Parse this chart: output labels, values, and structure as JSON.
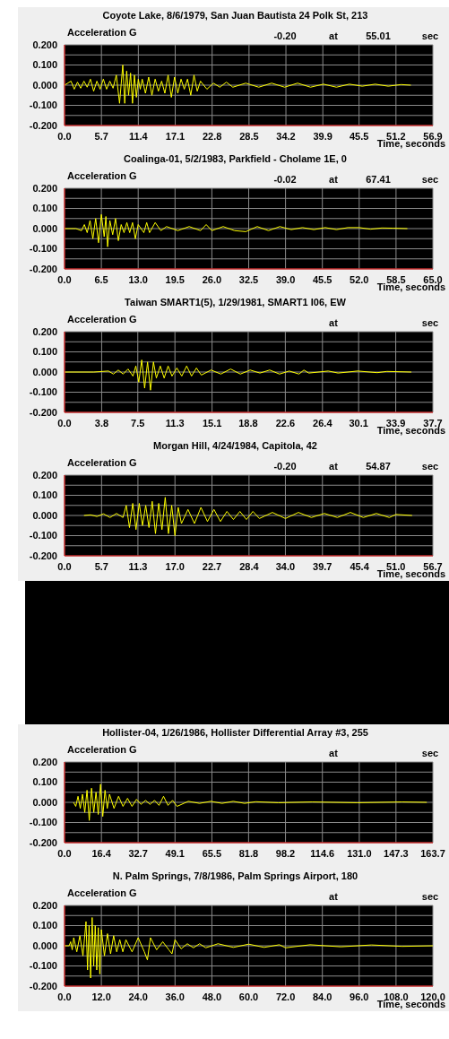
{
  "chart_data": [
    {
      "type": "line",
      "title": "Coyote Lake, 8/6/1979, San Juan Bautista 24 Polk St, 213",
      "ylabel": "Acceleration G",
      "xlabel": "Time, seconds",
      "annotations": [
        "-0.20",
        "at",
        "55.01",
        "sec"
      ],
      "grid": true,
      "x": [
        0,
        1,
        1.5,
        2,
        2.5,
        3,
        3.5,
        4,
        4.5,
        5,
        5.5,
        6,
        6.5,
        7,
        7.5,
        8,
        8.5,
        9,
        9.3,
        9.6,
        9.9,
        10.2,
        10.5,
        10.8,
        11.1,
        11.4,
        11.7,
        12,
        12.5,
        13,
        13.5,
        14,
        14.5,
        15,
        15.5,
        16,
        16.5,
        17,
        17.5,
        18,
        18.5,
        19,
        19.5,
        20,
        20.5,
        21,
        22,
        23,
        24,
        25,
        26,
        28,
        30,
        32,
        34,
        36,
        38,
        40,
        42,
        44,
        46,
        48,
        50,
        52,
        53.5
      ],
      "series": [
        {
          "color": "#ffff00",
          "values": [
            0,
            0.02,
            -0.02,
            0.015,
            -0.015,
            0.02,
            -0.01,
            0.03,
            -0.03,
            0.02,
            -0.02,
            0.03,
            -0.02,
            0.02,
            -0.015,
            0.05,
            -0.09,
            0.1,
            -0.09,
            0.07,
            -0.05,
            0.06,
            -0.09,
            0.05,
            -0.06,
            0.03,
            -0.02,
            0.03,
            -0.04,
            0.04,
            -0.05,
            0.03,
            -0.03,
            0.02,
            -0.04,
            0.05,
            -0.06,
            0.04,
            -0.04,
            0.03,
            -0.02,
            0.03,
            -0.05,
            0.05,
            -0.03,
            0.02,
            -0.02,
            0.01,
            -0.01,
            0.015,
            -0.01,
            0.01,
            -0.01,
            0.01,
            -0.01,
            0.01,
            -0.01,
            0.005,
            -0.01,
            0.005,
            -0.005,
            0.005,
            -0.005,
            0.003,
            0
          ]
        }
      ],
      "xlim": [
        0,
        56.9
      ],
      "xticks": [
        {
          "value": 0,
          "label": "0.0"
        },
        {
          "value": 5.7,
          "label": "5.7"
        },
        {
          "value": 11.4,
          "label": "11.4"
        },
        {
          "value": 17.1,
          "label": "17.1"
        },
        {
          "value": 22.8,
          "label": "22.8"
        },
        {
          "value": 28.5,
          "label": "28.5"
        },
        {
          "value": 34.2,
          "label": "34.2"
        },
        {
          "value": 39.9,
          "label": "39.9"
        },
        {
          "value": 45.5,
          "label": "45.5"
        },
        {
          "value": 51.2,
          "label": "51.2"
        },
        {
          "value": 56.9,
          "label": "56.9"
        }
      ],
      "ylim": [
        -0.2,
        0.2
      ],
      "yticks": [
        {
          "value": -0.2,
          "label": "-0.200"
        },
        {
          "value": -0.15,
          "label": null
        },
        {
          "value": -0.1,
          "label": "-0.100"
        },
        {
          "value": -0.05,
          "label": null
        },
        {
          "value": 0,
          "label": "0.000"
        },
        {
          "value": 0.05,
          "label": null
        },
        {
          "value": 0.1,
          "label": "0.100"
        },
        {
          "value": 0.15,
          "label": null
        },
        {
          "value": 0.2,
          "label": "0.200"
        }
      ]
    },
    {
      "type": "line",
      "title": "Coalinga-01, 5/2/1983, Parkfield - Cholame 1E, 0",
      "ylabel": "Acceleration G",
      "xlabel": "Time, seconds",
      "annotations": [
        "-0.02",
        "at",
        "67.41",
        "sec"
      ],
      "grid": true,
      "x": [
        0,
        2,
        3,
        3.5,
        4,
        4.5,
        5,
        5.5,
        6,
        6.5,
        7,
        7.3,
        7.6,
        8,
        8.5,
        9,
        9.5,
        10,
        10.5,
        11,
        11.5,
        12,
        12.5,
        13,
        14,
        14.5,
        15,
        16,
        17,
        18,
        20,
        22,
        24,
        25,
        26,
        28,
        30,
        32,
        34,
        36,
        38,
        40,
        42,
        44,
        46,
        48,
        50,
        52,
        54,
        56,
        58,
        60.5
      ],
      "series": [
        {
          "color": "#ffff00",
          "values": [
            0,
            0,
            -0.01,
            0.02,
            -0.02,
            0.04,
            -0.05,
            0.05,
            -0.07,
            0.07,
            -0.04,
            0.06,
            -0.09,
            0.04,
            -0.03,
            0.05,
            -0.06,
            0.02,
            -0.02,
            0.03,
            -0.02,
            0.03,
            -0.05,
            0.02,
            -0.02,
            0.03,
            -0.02,
            0.03,
            -0.01,
            0.01,
            -0.01,
            0.01,
            -0.01,
            0.02,
            -0.01,
            0.01,
            -0.01,
            -0.015,
            0.01,
            -0.01,
            0.01,
            -0.005,
            0.005,
            -0.005,
            0.005,
            -0.005,
            0.005,
            0.005,
            -0.003,
            0.003,
            0.002,
            0
          ]
        }
      ],
      "xlim": [
        0,
        65
      ],
      "xticks": [
        {
          "value": 0,
          "label": "0.0"
        },
        {
          "value": 6.5,
          "label": "6.5"
        },
        {
          "value": 13,
          "label": "13.0"
        },
        {
          "value": 19.5,
          "label": "19.5"
        },
        {
          "value": 26,
          "label": "26.0"
        },
        {
          "value": 32.5,
          "label": "32.5"
        },
        {
          "value": 39,
          "label": "39.0"
        },
        {
          "value": 45.5,
          "label": "45.5"
        },
        {
          "value": 52,
          "label": "52.0"
        },
        {
          "value": 58.5,
          "label": "58.5"
        },
        {
          "value": 65,
          "label": "65.0"
        }
      ],
      "ylim": [
        -0.2,
        0.2
      ],
      "yticks": [
        {
          "value": -0.2,
          "label": "-0.200"
        },
        {
          "value": -0.15,
          "label": null
        },
        {
          "value": -0.1,
          "label": "-0.100"
        },
        {
          "value": -0.05,
          "label": null
        },
        {
          "value": 0,
          "label": "0.000"
        },
        {
          "value": 0.05,
          "label": null
        },
        {
          "value": 0.1,
          "label": "0.100"
        },
        {
          "value": 0.15,
          "label": null
        },
        {
          "value": 0.2,
          "label": "0.200"
        }
      ]
    },
    {
      "type": "line",
      "title": "Taiwan SMART1(5), 1/29/1981, SMART1 I06, EW",
      "ylabel": "Acceleration G",
      "xlabel": "Time, seconds",
      "annotations": [
        "at",
        "sec"
      ],
      "grid": true,
      "x": [
        0,
        3,
        4.5,
        5,
        5.5,
        6,
        6.5,
        7,
        7.3,
        7.6,
        7.9,
        8.2,
        8.5,
        8.8,
        9.1,
        9.4,
        9.8,
        10.2,
        10.6,
        11,
        11.5,
        12,
        12.5,
        13,
        13.5,
        14,
        15,
        16,
        17,
        18,
        19,
        20,
        21,
        22,
        23,
        24,
        24.5,
        25,
        27,
        28,
        30,
        32,
        33,
        35.5
      ],
      "series": [
        {
          "color": "#ffff00",
          "values": [
            0,
            0,
            0.005,
            -0.01,
            0.01,
            -0.01,
            0.015,
            -0.02,
            0.03,
            -0.05,
            0.06,
            -0.08,
            0.05,
            -0.09,
            0.05,
            -0.03,
            0.03,
            -0.03,
            0.03,
            -0.02,
            0.02,
            -0.02,
            0.03,
            -0.02,
            0.02,
            -0.015,
            0.01,
            -0.01,
            0.015,
            -0.01,
            0.01,
            -0.005,
            0.01,
            -0.01,
            0.005,
            -0.01,
            0.01,
            -0.005,
            0.005,
            -0.005,
            0.005,
            -0.003,
            0.003,
            0
          ]
        }
      ],
      "xlim": [
        0,
        37.7
      ],
      "xticks": [
        {
          "value": 0,
          "label": "0.0"
        },
        {
          "value": 3.8,
          "label": "3.8"
        },
        {
          "value": 7.5,
          "label": "7.5"
        },
        {
          "value": 11.3,
          "label": "11.3"
        },
        {
          "value": 15.1,
          "label": "15.1"
        },
        {
          "value": 18.8,
          "label": "18.8"
        },
        {
          "value": 22.6,
          "label": "22.6"
        },
        {
          "value": 26.4,
          "label": "26.4"
        },
        {
          "value": 30.1,
          "label": "30.1"
        },
        {
          "value": 33.9,
          "label": "33.9"
        },
        {
          "value": 37.7,
          "label": "37.7"
        }
      ],
      "ylim": [
        -0.2,
        0.2
      ],
      "yticks": [
        {
          "value": -0.2,
          "label": "-0.200"
        },
        {
          "value": -0.15,
          "label": null
        },
        {
          "value": -0.1,
          "label": "-0.100"
        },
        {
          "value": -0.05,
          "label": null
        },
        {
          "value": 0,
          "label": "0.000"
        },
        {
          "value": 0.05,
          "label": null
        },
        {
          "value": 0.1,
          "label": "0.100"
        },
        {
          "value": 0.15,
          "label": null
        },
        {
          "value": 0.2,
          "label": "0.200"
        }
      ]
    },
    {
      "type": "line",
      "title": "Morgan Hill, 4/24/1984, Capitola, 42",
      "ylabel": "Acceleration G",
      "xlabel": "Time, seconds",
      "annotations": [
        "-0.20",
        "at",
        "54.87",
        "sec"
      ],
      "grid": true,
      "x": [
        3,
        4,
        5,
        6,
        7,
        8,
        9,
        9.5,
        10,
        10.5,
        11,
        11.5,
        12,
        12.5,
        13,
        13.5,
        14,
        14.5,
        15,
        15.5,
        16,
        16.5,
        17,
        17.5,
        18,
        19,
        20,
        21,
        22,
        23,
        24,
        25,
        26,
        27,
        28,
        29,
        30,
        32,
        34,
        36,
        38,
        40,
        42,
        44,
        46,
        48,
        50,
        51,
        53.5
      ],
      "series": [
        {
          "color": "#ffff00",
          "values": [
            0,
            0.003,
            -0.005,
            0.008,
            -0.01,
            0.01,
            -0.01,
            0.05,
            -0.06,
            0.06,
            -0.07,
            0.06,
            -0.05,
            0.05,
            -0.06,
            0.07,
            -0.09,
            0.06,
            -0.07,
            0.09,
            -0.09,
            0.05,
            -0.1,
            0.04,
            -0.04,
            0.03,
            -0.04,
            0.04,
            -0.03,
            0.03,
            -0.03,
            0.02,
            -0.02,
            0.02,
            -0.02,
            0.02,
            -0.015,
            0.015,
            -0.015,
            0.015,
            -0.01,
            0.01,
            -0.01,
            0.015,
            -0.01,
            0.01,
            -0.01,
            0.005,
            0
          ]
        }
      ],
      "xlim": [
        0,
        56.7
      ],
      "xticks": [
        {
          "value": 0,
          "label": "0.0"
        },
        {
          "value": 5.7,
          "label": "5.7"
        },
        {
          "value": 11.3,
          "label": "11.3"
        },
        {
          "value": 17,
          "label": "17.0"
        },
        {
          "value": 22.7,
          "label": "22.7"
        },
        {
          "value": 28.4,
          "label": "28.4"
        },
        {
          "value": 34,
          "label": "34.0"
        },
        {
          "value": 39.7,
          "label": "39.7"
        },
        {
          "value": 45.4,
          "label": "45.4"
        },
        {
          "value": 51,
          "label": "51.0"
        },
        {
          "value": 56.7,
          "label": "56.7"
        }
      ],
      "ylim": [
        -0.2,
        0.2
      ],
      "yticks": [
        {
          "value": -0.2,
          "label": "-0.200"
        },
        {
          "value": -0.15,
          "label": null
        },
        {
          "value": -0.1,
          "label": "-0.100"
        },
        {
          "value": -0.05,
          "label": null
        },
        {
          "value": 0,
          "label": "0.000"
        },
        {
          "value": 0.05,
          "label": null
        },
        {
          "value": 0.1,
          "label": "0.100"
        },
        {
          "value": 0.15,
          "label": null
        },
        {
          "value": 0.2,
          "label": "0.200"
        }
      ]
    },
    {
      "type": "line",
      "title": "Hollister-04, 1/26/1986, Hollister Differential Array #3, 255",
      "ylabel": "Acceleration G",
      "annotations": [
        "at",
        "sec"
      ],
      "grid": true,
      "x": [
        4,
        5,
        6,
        7,
        8,
        9,
        10,
        11,
        12,
        13,
        14,
        15,
        16,
        17,
        18,
        19,
        20,
        22,
        24,
        26,
        28,
        30,
        32,
        34,
        36,
        38,
        40,
        42,
        44,
        46,
        48,
        50,
        55,
        60,
        65,
        70,
        75,
        80,
        85,
        95,
        110,
        130,
        150,
        161
      ],
      "series": [
        {
          "color": "#ffff00",
          "values": [
            0,
            -0.02,
            0.03,
            -0.03,
            0.04,
            -0.05,
            0.06,
            -0.09,
            0.07,
            -0.05,
            0.05,
            -0.06,
            0.09,
            -0.07,
            0.06,
            -0.03,
            0.04,
            -0.03,
            0.03,
            -0.02,
            0.02,
            -0.02,
            0.015,
            -0.01,
            0.01,
            -0.01,
            0.01,
            -0.015,
            0.03,
            -0.015,
            0.01,
            -0.02,
            0.005,
            -0.005,
            0.005,
            -0.005,
            0.005,
            -0.005,
            0.003,
            -0.002,
            0.002,
            -0.002,
            0.002,
            0
          ]
        }
      ],
      "xlim": [
        0,
        163.7
      ],
      "xticks": [
        {
          "value": 0,
          "label": "0.0"
        },
        {
          "value": 16.4,
          "label": "16.4"
        },
        {
          "value": 32.7,
          "label": "32.7"
        },
        {
          "value": 49.1,
          "label": "49.1"
        },
        {
          "value": 65.5,
          "label": "65.5"
        },
        {
          "value": 81.8,
          "label": "81.8"
        },
        {
          "value": 98.2,
          "label": "98.2"
        },
        {
          "value": 114.6,
          "label": "114.6"
        },
        {
          "value": 131,
          "label": "131.0"
        },
        {
          "value": 147.3,
          "label": "147.3"
        },
        {
          "value": 163.7,
          "label": "163.7"
        }
      ],
      "ylim": [
        -0.2,
        0.2
      ],
      "yticks": [
        {
          "value": -0.2,
          "label": "-0.200"
        },
        {
          "value": -0.15,
          "label": null
        },
        {
          "value": -0.1,
          "label": "-0.100"
        },
        {
          "value": -0.05,
          "label": null
        },
        {
          "value": 0,
          "label": "0.000"
        },
        {
          "value": 0.05,
          "label": null
        },
        {
          "value": 0.1,
          "label": "0.100"
        },
        {
          "value": 0.15,
          "label": null
        },
        {
          "value": 0.2,
          "label": "0.200"
        }
      ]
    },
    {
      "type": "line",
      "title": "N. Palm Springs, 7/8/1986, Palm Springs Airport, 180",
      "ylabel": "Acceleration G",
      "xlabel": "Time, seconds",
      "annotations": [
        "at",
        "sec"
      ],
      "grid": true,
      "x": [
        0,
        1.5,
        2,
        2.5,
        3,
        4,
        5,
        6,
        7,
        7.5,
        8,
        8.5,
        9,
        9.5,
        10,
        10.5,
        11,
        11.5,
        12,
        13,
        14,
        15,
        16,
        17,
        18,
        19,
        20,
        22,
        24,
        26,
        27,
        28,
        30,
        32,
        34,
        35,
        36,
        38,
        40,
        42,
        44,
        46,
        50,
        55,
        60,
        65,
        70,
        72,
        80,
        90,
        100,
        110,
        120
      ],
      "series": [
        {
          "color": "#ffff00",
          "values": [
            0,
            0,
            0.02,
            -0.02,
            0.04,
            -0.03,
            0.05,
            -0.05,
            0.12,
            -0.12,
            0.1,
            -0.16,
            0.14,
            -0.1,
            0.1,
            -0.12,
            0.09,
            -0.14,
            0.08,
            -0.05,
            0.06,
            -0.04,
            0.05,
            -0.03,
            0.03,
            -0.03,
            0.03,
            -0.03,
            0.04,
            -0.03,
            -0.07,
            0.04,
            -0.02,
            0.02,
            -0.02,
            -0.04,
            0.03,
            -0.015,
            0.01,
            -0.01,
            0.01,
            -0.01,
            0.01,
            -0.008,
            0.008,
            -0.008,
            0.005,
            -0.01,
            0.005,
            -0.005,
            0.004,
            -0.003,
            0
          ]
        }
      ],
      "xlim": [
        0,
        120
      ],
      "xticks": [
        {
          "value": 0,
          "label": "0.0"
        },
        {
          "value": 12,
          "label": "12.0"
        },
        {
          "value": 24,
          "label": "24.0"
        },
        {
          "value": 36,
          "label": "36.0"
        },
        {
          "value": 48,
          "label": "48.0"
        },
        {
          "value": 60,
          "label": "60.0"
        },
        {
          "value": 72,
          "label": "72.0"
        },
        {
          "value": 84,
          "label": "84.0"
        },
        {
          "value": 96,
          "label": "96.0"
        },
        {
          "value": 108,
          "label": "108.0"
        },
        {
          "value": 120,
          "label": "120.0"
        }
      ],
      "ylim": [
        -0.2,
        0.2
      ],
      "yticks": [
        {
          "value": -0.2,
          "label": "-0.200"
        },
        {
          "value": -0.15,
          "label": null
        },
        {
          "value": -0.1,
          "label": "-0.100"
        },
        {
          "value": -0.05,
          "label": null
        },
        {
          "value": 0,
          "label": "0.000"
        },
        {
          "value": 0.05,
          "label": null
        },
        {
          "value": 0.1,
          "label": "0.100"
        },
        {
          "value": 0.15,
          "label": null
        },
        {
          "value": 0.2,
          "label": "0.200"
        }
      ]
    }
  ]
}
